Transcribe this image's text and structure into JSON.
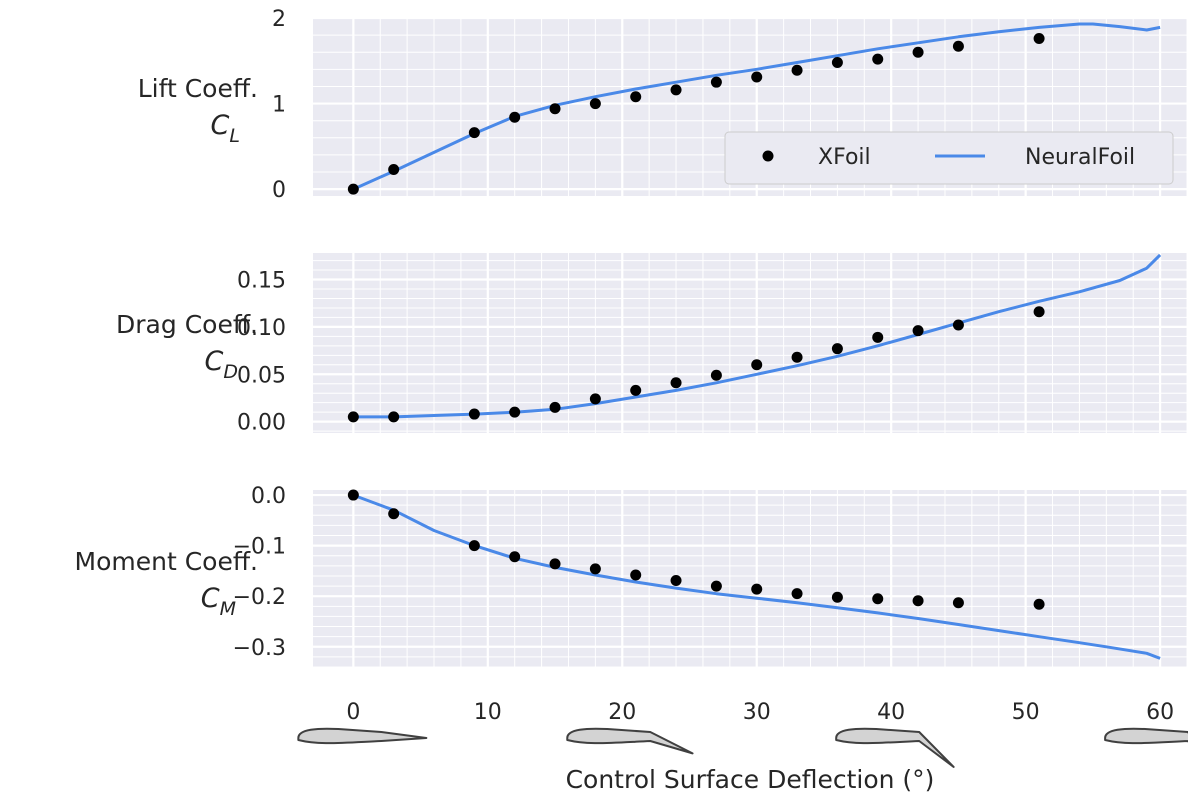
{
  "colors": {
    "axes_bg": "#EAEAF2",
    "grid": "#FFFFFF",
    "xfoil": "#000000",
    "neuralfoil": "#4A89E8",
    "airfoil_fill": "#D3D3D3",
    "airfoil_edge": "#404040"
  },
  "legend": {
    "items": [
      {
        "label": "XFoil",
        "marker": "dot"
      },
      {
        "label": "NeuralFoil",
        "marker": "line"
      }
    ]
  },
  "xlabel": "Control Surface Deflection (°)",
  "airfoil_icons": {
    "deflections": [
      0,
      20,
      40,
      60
    ],
    "description_name": "airfoil-icon"
  },
  "chart_data": [
    {
      "type": "line",
      "name_label": "Lift Coeff.",
      "symbol": "C",
      "subscript": "L",
      "xlim": [
        -3,
        62
      ],
      "ylim": [
        -0.08,
        2.0
      ],
      "xticks": [
        0,
        10,
        20,
        30,
        40,
        50,
        60
      ],
      "yticks": [
        0,
        1,
        2
      ],
      "ytick_labels": [
        "0",
        "1",
        "2"
      ],
      "show_xtick_labels": false,
      "series": [
        {
          "name": "XFoil",
          "kind": "scatter",
          "x": [
            0,
            3,
            9,
            12,
            15,
            18,
            21,
            24,
            27,
            30,
            33,
            36,
            39,
            42,
            45,
            51
          ],
          "y": [
            0.0,
            0.23,
            0.66,
            0.84,
            0.94,
            1.0,
            1.08,
            1.16,
            1.25,
            1.31,
            1.39,
            1.48,
            1.52,
            1.6,
            1.67,
            1.76
          ]
        },
        {
          "name": "NeuralFoil",
          "kind": "line",
          "x": [
            0,
            3,
            6,
            9,
            12,
            15,
            18,
            21,
            24,
            27,
            30,
            33,
            36,
            39,
            42,
            45,
            48,
            51,
            54,
            55,
            57,
            59,
            60
          ],
          "y": [
            0.0,
            0.21,
            0.43,
            0.65,
            0.85,
            0.98,
            1.08,
            1.17,
            1.25,
            1.33,
            1.4,
            1.48,
            1.56,
            1.64,
            1.71,
            1.78,
            1.84,
            1.89,
            1.93,
            1.93,
            1.9,
            1.86,
            1.89
          ]
        }
      ]
    },
    {
      "type": "line",
      "name_label": "Drag Coeff.",
      "symbol": "C",
      "subscript": "D",
      "xlim": [
        -3,
        62
      ],
      "ylim": [
        -0.012,
        0.178
      ],
      "xticks": [
        0,
        10,
        20,
        30,
        40,
        50,
        60
      ],
      "yticks": [
        0.0,
        0.05,
        0.1,
        0.15
      ],
      "ytick_labels": [
        "0.00",
        "0.05",
        "0.10",
        "0.15"
      ],
      "show_xtick_labels": false,
      "series": [
        {
          "name": "XFoil",
          "kind": "scatter",
          "x": [
            0,
            3,
            9,
            12,
            15,
            18,
            21,
            24,
            27,
            30,
            33,
            36,
            39,
            42,
            45,
            51
          ],
          "y": [
            0.005,
            0.005,
            0.008,
            0.01,
            0.015,
            0.024,
            0.033,
            0.041,
            0.049,
            0.06,
            0.068,
            0.077,
            0.089,
            0.096,
            0.102,
            0.116
          ]
        },
        {
          "name": "NeuralFoil",
          "kind": "line",
          "x": [
            0,
            3,
            6,
            9,
            12,
            15,
            18,
            21,
            24,
            27,
            30,
            33,
            36,
            39,
            42,
            45,
            48,
            51,
            54,
            57,
            59,
            60
          ],
          "y": [
            0.005,
            0.005,
            0.0065,
            0.008,
            0.01,
            0.013,
            0.019,
            0.026,
            0.033,
            0.041,
            0.05,
            0.059,
            0.069,
            0.08,
            0.092,
            0.104,
            0.116,
            0.127,
            0.137,
            0.149,
            0.162,
            0.176
          ]
        }
      ]
    },
    {
      "type": "line",
      "name_label": "Moment Coeff.",
      "symbol": "C",
      "subscript": "M",
      "xlim": [
        -3,
        62
      ],
      "ylim": [
        -0.34,
        0.01
      ],
      "xticks": [
        0,
        10,
        20,
        30,
        40,
        50,
        60
      ],
      "yticks": [
        0.0,
        -0.1,
        -0.2,
        -0.3
      ],
      "ytick_labels": [
        "0.0",
        "−0.1",
        "−0.2",
        "−0.3"
      ],
      "show_xtick_labels": true,
      "xtick_labels": [
        "0",
        "10",
        "20",
        "30",
        "40",
        "50",
        "60"
      ],
      "series": [
        {
          "name": "XFoil",
          "kind": "scatter",
          "x": [
            0,
            3,
            9,
            12,
            15,
            18,
            21,
            24,
            27,
            30,
            33,
            36,
            39,
            42,
            45,
            51
          ],
          "y": [
            0.0,
            -0.037,
            -0.1,
            -0.122,
            -0.136,
            -0.146,
            -0.158,
            -0.169,
            -0.18,
            -0.186,
            -0.195,
            -0.202,
            -0.205,
            -0.209,
            -0.213,
            -0.216
          ]
        },
        {
          "name": "NeuralFoil",
          "kind": "line",
          "x": [
            0,
            3,
            6,
            9,
            12,
            15,
            18,
            21,
            24,
            27,
            30,
            33,
            36,
            39,
            42,
            45,
            48,
            51,
            54,
            56,
            59,
            60
          ],
          "y": [
            0.0,
            -0.03,
            -0.07,
            -0.1,
            -0.125,
            -0.143,
            -0.158,
            -0.172,
            -0.184,
            -0.195,
            -0.204,
            -0.213,
            -0.223,
            -0.233,
            -0.244,
            -0.256,
            -0.268,
            -0.28,
            -0.292,
            -0.3,
            -0.313,
            -0.323
          ]
        }
      ]
    }
  ]
}
